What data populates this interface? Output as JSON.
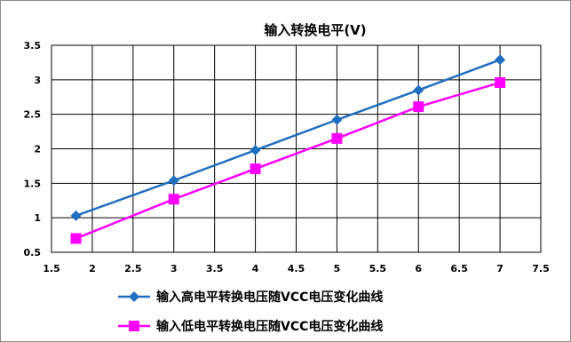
{
  "chart_data": {
    "type": "line",
    "title": "输入转换电平(V)",
    "xlabel": "",
    "ylabel": "",
    "xlim": [
      1.5,
      7.5
    ],
    "ylim": [
      0.5,
      3.5
    ],
    "xticks": [
      "1.5",
      "2",
      "2.5",
      "3",
      "3.5",
      "4",
      "4.5",
      "5",
      "5.5",
      "6",
      "6.5",
      "7",
      "7.5"
    ],
    "yticks": [
      "0.5",
      "1",
      "1.5",
      "2",
      "2.5",
      "3",
      "3.5"
    ],
    "grid": true,
    "legend_position": "bottom",
    "series": [
      {
        "name": "输入高电平转换电压随VCC电压变化曲线",
        "color": "#1f6fc0",
        "marker": "diamond",
        "x": [
          1.8,
          3,
          4,
          5,
          6,
          7
        ],
        "y": [
          1.03,
          1.54,
          1.98,
          2.42,
          2.85,
          3.29
        ]
      },
      {
        "name": "输入低电平转换电压随VCC电压变化曲线",
        "color": "#ff00ff",
        "marker": "square",
        "x": [
          1.8,
          3,
          4,
          5,
          6,
          7
        ],
        "y": [
          0.7,
          1.27,
          1.71,
          2.15,
          2.61,
          2.96
        ]
      }
    ]
  }
}
